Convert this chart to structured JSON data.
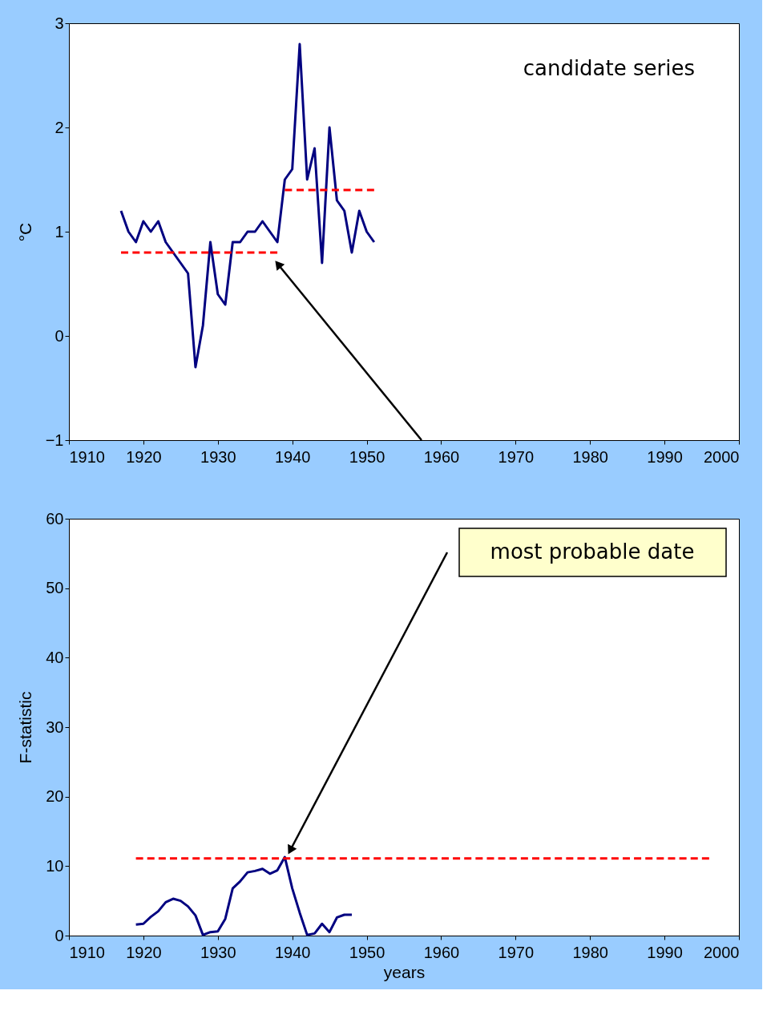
{
  "chart_data": [
    {
      "type": "line",
      "ylabel": "°C",
      "xlim": [
        1910,
        2000
      ],
      "xticks": [
        1910,
        1920,
        1930,
        1940,
        1950,
        1960,
        1970,
        1980,
        1990,
        2000
      ],
      "ylim": [
        -1,
        3
      ],
      "yticks": [
        -1,
        0,
        1,
        2,
        3
      ],
      "grid": false,
      "annotations": [
        "candidate series",
        "most probable date"
      ],
      "series": [
        {
          "color": "#000080",
          "line_style": "solid",
          "x": [
            1917,
            1918,
            1919,
            1920,
            1921,
            1922,
            1923,
            1924,
            1925,
            1926,
            1927,
            1928,
            1929,
            1930,
            1931,
            1932,
            1933,
            1934,
            1935,
            1936,
            1937,
            1938,
            1939,
            1940,
            1941,
            1942,
            1943,
            1944,
            1945,
            1946,
            1947,
            1948,
            1949,
            1950,
            1951
          ],
          "values": [
            1.2,
            1.0,
            0.9,
            1.1,
            1.0,
            1.1,
            0.9,
            0.8,
            0.7,
            0.6,
            -0.3,
            0.1,
            0.9,
            0.4,
            0.3,
            0.9,
            0.9,
            1.0,
            1.0,
            1.1,
            1.0,
            0.9,
            1.5,
            1.6,
            2.8,
            1.5,
            1.8,
            0.7,
            2.0,
            1.3,
            1.2,
            0.8,
            1.2,
            1.0,
            0.9
          ]
        },
        {
          "color": "#ff0000",
          "line_style": "dashed",
          "x": [
            1917,
            1938
          ],
          "values": [
            0.8,
            0.8
          ]
        },
        {
          "color": "#ff0000",
          "line_style": "dashed",
          "x": [
            1939,
            1951
          ],
          "values": [
            1.4,
            1.4
          ]
        }
      ]
    },
    {
      "type": "line",
      "ylabel": "F-statistic",
      "xlabel": "years",
      "xlim": [
        1910,
        2000
      ],
      "xticks": [
        1910,
        1920,
        1930,
        1940,
        1950,
        1960,
        1970,
        1980,
        1990,
        2000
      ],
      "ylim": [
        0,
        60
      ],
      "yticks": [
        0,
        10,
        20,
        30,
        40,
        50,
        60
      ],
      "grid": false,
      "series": [
        {
          "color": "#000080",
          "line_style": "solid",
          "x": [
            1919,
            1920,
            1921,
            1922,
            1923,
            1924,
            1925,
            1926,
            1927,
            1928,
            1929,
            1930,
            1931,
            1932,
            1933,
            1934,
            1935,
            1936,
            1937,
            1938,
            1939,
            1940,
            1941,
            1942,
            1943,
            1944,
            1945,
            1946,
            1947,
            1948
          ],
          "values": [
            1.6,
            1.7,
            2.7,
            3.5,
            4.8,
            5.3,
            5.0,
            4.2,
            2.9,
            0.1,
            0.5,
            0.6,
            2.4,
            6.8,
            7.8,
            9.1,
            9.3,
            9.6,
            8.9,
            9.4,
            11.3,
            6.8,
            3.3,
            0.1,
            0.3,
            1.7,
            0.5,
            2.6,
            3.0,
            3.0
          ]
        },
        {
          "color": "#ff0000",
          "line_style": "dashed",
          "x": [
            1919,
            1996
          ],
          "values": [
            11.1,
            11.1
          ]
        }
      ]
    }
  ]
}
